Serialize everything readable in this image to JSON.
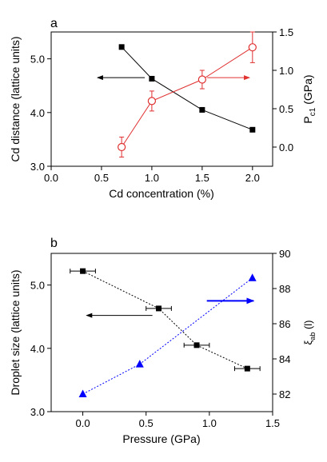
{
  "chart_data": [
    {
      "panel_label": "a",
      "type": "scatter",
      "xlabel": "Cd concentration (%)",
      "xlim": [
        0.0,
        2.2
      ],
      "xticks": [
        "0.0",
        "0.5",
        "1.0",
        "1.5",
        "2.0"
      ],
      "ylabel": "Cd distance (lattice units)",
      "ylim": [
        3.0,
        5.5
      ],
      "yticks": [
        "3.0",
        "4.0",
        "5.0"
      ],
      "y2label": "P",
      "y2label_sub": "c1",
      "y2label_unit": " (GPa)",
      "y2lim": [
        -0.25,
        1.5
      ],
      "y2ticks": [
        "0.0",
        "0.5",
        "1.0",
        "1.5"
      ],
      "series": [
        {
          "axis": "left",
          "color": "#000000",
          "marker": "filled-square",
          "line": "solid",
          "x": [
            0.7,
            1.0,
            1.5,
            2.0
          ],
          "y": [
            5.22,
            4.63,
            4.05,
            3.68
          ]
        },
        {
          "axis": "right",
          "color": "#e03030",
          "marker": "open-circle",
          "line": "solid",
          "x": [
            0.7,
            1.0,
            1.5,
            2.0
          ],
          "y": [
            0.0,
            0.6,
            0.88,
            1.3
          ],
          "yerr": [
            0.13,
            0.13,
            0.12,
            0.2
          ]
        }
      ],
      "arrows": [
        {
          "color": "#000000",
          "direction": "left",
          "from": [
            0.93,
            4.65
          ],
          "to": [
            0.46,
            4.65
          ]
        },
        {
          "color": "#e03030",
          "direction": "right",
          "from": [
            1.55,
            4.65
          ],
          "to": [
            1.97,
            4.65
          ]
        }
      ],
      "grid": false
    },
    {
      "panel_label": "b",
      "type": "scatter",
      "xlabel": "Pressure (GPa)",
      "xlim": [
        -0.25,
        1.5
      ],
      "xticks": [
        "0.0",
        "0.5",
        "1.0",
        "1.5"
      ],
      "ylabel": "Droplet size (lattice units)",
      "ylim": [
        3.0,
        5.5
      ],
      "yticks": [
        "3.0",
        "4.0",
        "5.0"
      ],
      "y2label": "ξ",
      "y2label_sub": "ab",
      "y2label_unit": " (l)",
      "y2lim": [
        81,
        90
      ],
      "y2ticks": [
        "82",
        "84",
        "86",
        "88",
        "90"
      ],
      "series": [
        {
          "axis": "left",
          "color": "#000000",
          "marker": "filled-square",
          "line": "dotted",
          "x": [
            0.0,
            0.6,
            0.9,
            1.3
          ],
          "y": [
            5.22,
            4.63,
            4.05,
            3.68
          ],
          "xerr": [
            0.1,
            0.1,
            0.1,
            0.1
          ]
        },
        {
          "axis": "right",
          "color": "#0000ff",
          "marker": "filled-triangle",
          "line": "dotted",
          "x": [
            0.0,
            0.45,
            1.34
          ],
          "y": [
            82.0,
            83.7,
            88.6
          ]
        }
      ],
      "arrows": [
        {
          "color": "#000000",
          "direction": "left",
          "from": [
            0.55,
            4.52
          ],
          "to": [
            0.03,
            4.52
          ]
        },
        {
          "color": "#0000ff",
          "direction": "right",
          "from": [
            0.98,
            4.75
          ],
          "to": [
            1.35,
            4.75
          ]
        }
      ],
      "grid": false
    }
  ]
}
